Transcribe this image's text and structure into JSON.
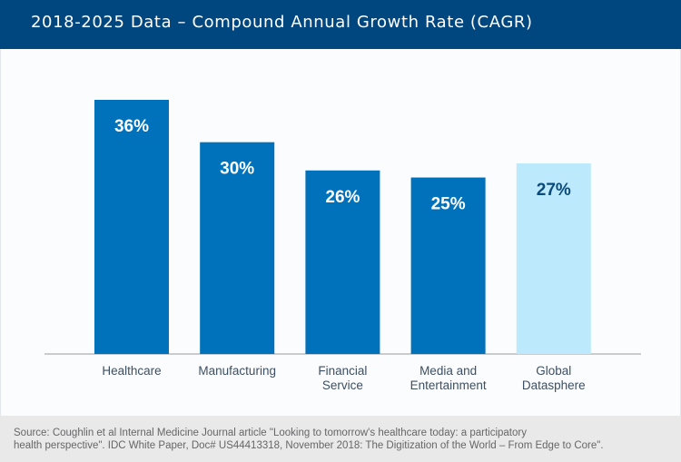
{
  "header": {
    "title": "2018-2025 Data – Compound Annual Growth Rate (CAGR)"
  },
  "chart_data": {
    "type": "bar",
    "title": "2018-2025 Data – Compound Annual Growth Rate (CAGR)",
    "categories": [
      [
        "Healthcare"
      ],
      [
        "Manufacturing"
      ],
      [
        "Financial",
        "Service"
      ],
      [
        "Media and",
        "Entertainment"
      ],
      [
        "Global",
        "Datasphere"
      ]
    ],
    "values": [
      36,
      30,
      26,
      25,
      27
    ],
    "value_labels": [
      "36%",
      "30%",
      "26%",
      "25%",
      "27%"
    ],
    "ylim": [
      0,
      36
    ],
    "grid": false,
    "colors": {
      "bar": "#0072bc",
      "highlight_bar": "#bce9fb",
      "label_on_dark": "#ffffff",
      "label_on_light": "#0b4a7c",
      "axis": "#9a9a9a",
      "category_text": "#3d4f63"
    },
    "highlight_index": 4
  },
  "footer": {
    "source_line1": "Source: Coughlin et al Internal Medicine Journal article \"Looking to tomorrow's healthcare today: a participatory",
    "source_line2": "health perspective\". IDC White Paper, Doc# US44413318, November 2018: The Digitization of the World – From Edge to Core\"."
  }
}
